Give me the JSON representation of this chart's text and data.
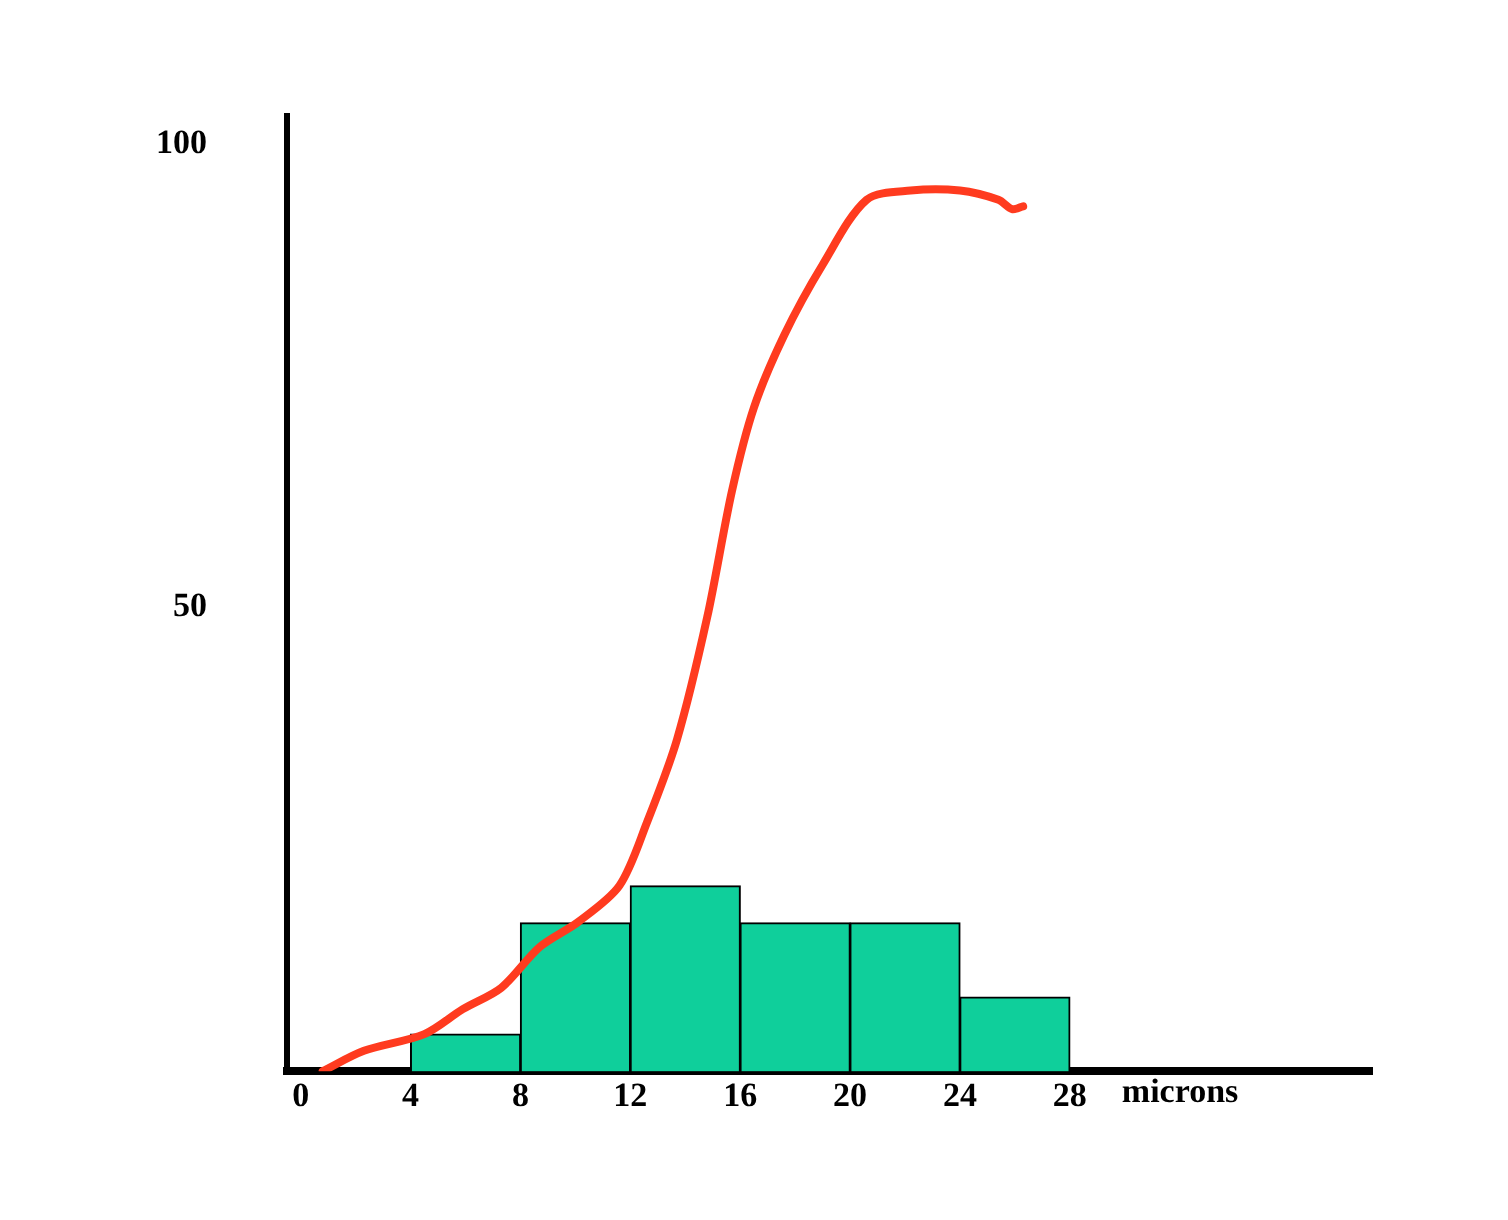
{
  "chart_data": {
    "type": "histogram",
    "xlabel": "microns",
    "bins": [
      4,
      8,
      12,
      16,
      20,
      24,
      28
    ],
    "values": [
      4,
      16,
      20,
      16,
      16,
      8
    ],
    "color": "#0fcf9b",
    "series": [
      {
        "type": "line",
        "color": "#ff3b1f",
        "x": [
          0.8,
          2.3,
          4.5,
          5.9,
          7.3,
          8.7,
          10.1,
          11.6,
          12.6,
          13.7,
          14.8,
          15.7,
          16.5,
          17.6,
          19,
          20.6,
          22.2,
          24,
          25.4,
          25.9,
          26.3
        ],
        "values": [
          0,
          2.2,
          4,
          6.7,
          9,
          13.4,
          16.1,
          20,
          26.8,
          35.8,
          49,
          62.6,
          71.6,
          79.4,
          87,
          94,
          95,
          95,
          94,
          93,
          93.3
        ]
      }
    ],
    "xlim": [
      -0.5,
      39
    ],
    "xticks": [
      0,
      4,
      8,
      12,
      16,
      20,
      24,
      28
    ],
    "ylim": [
      0,
      103
    ],
    "yticks": [
      50,
      100
    ],
    "grid": false,
    "legend": false,
    "marker": "none"
  }
}
